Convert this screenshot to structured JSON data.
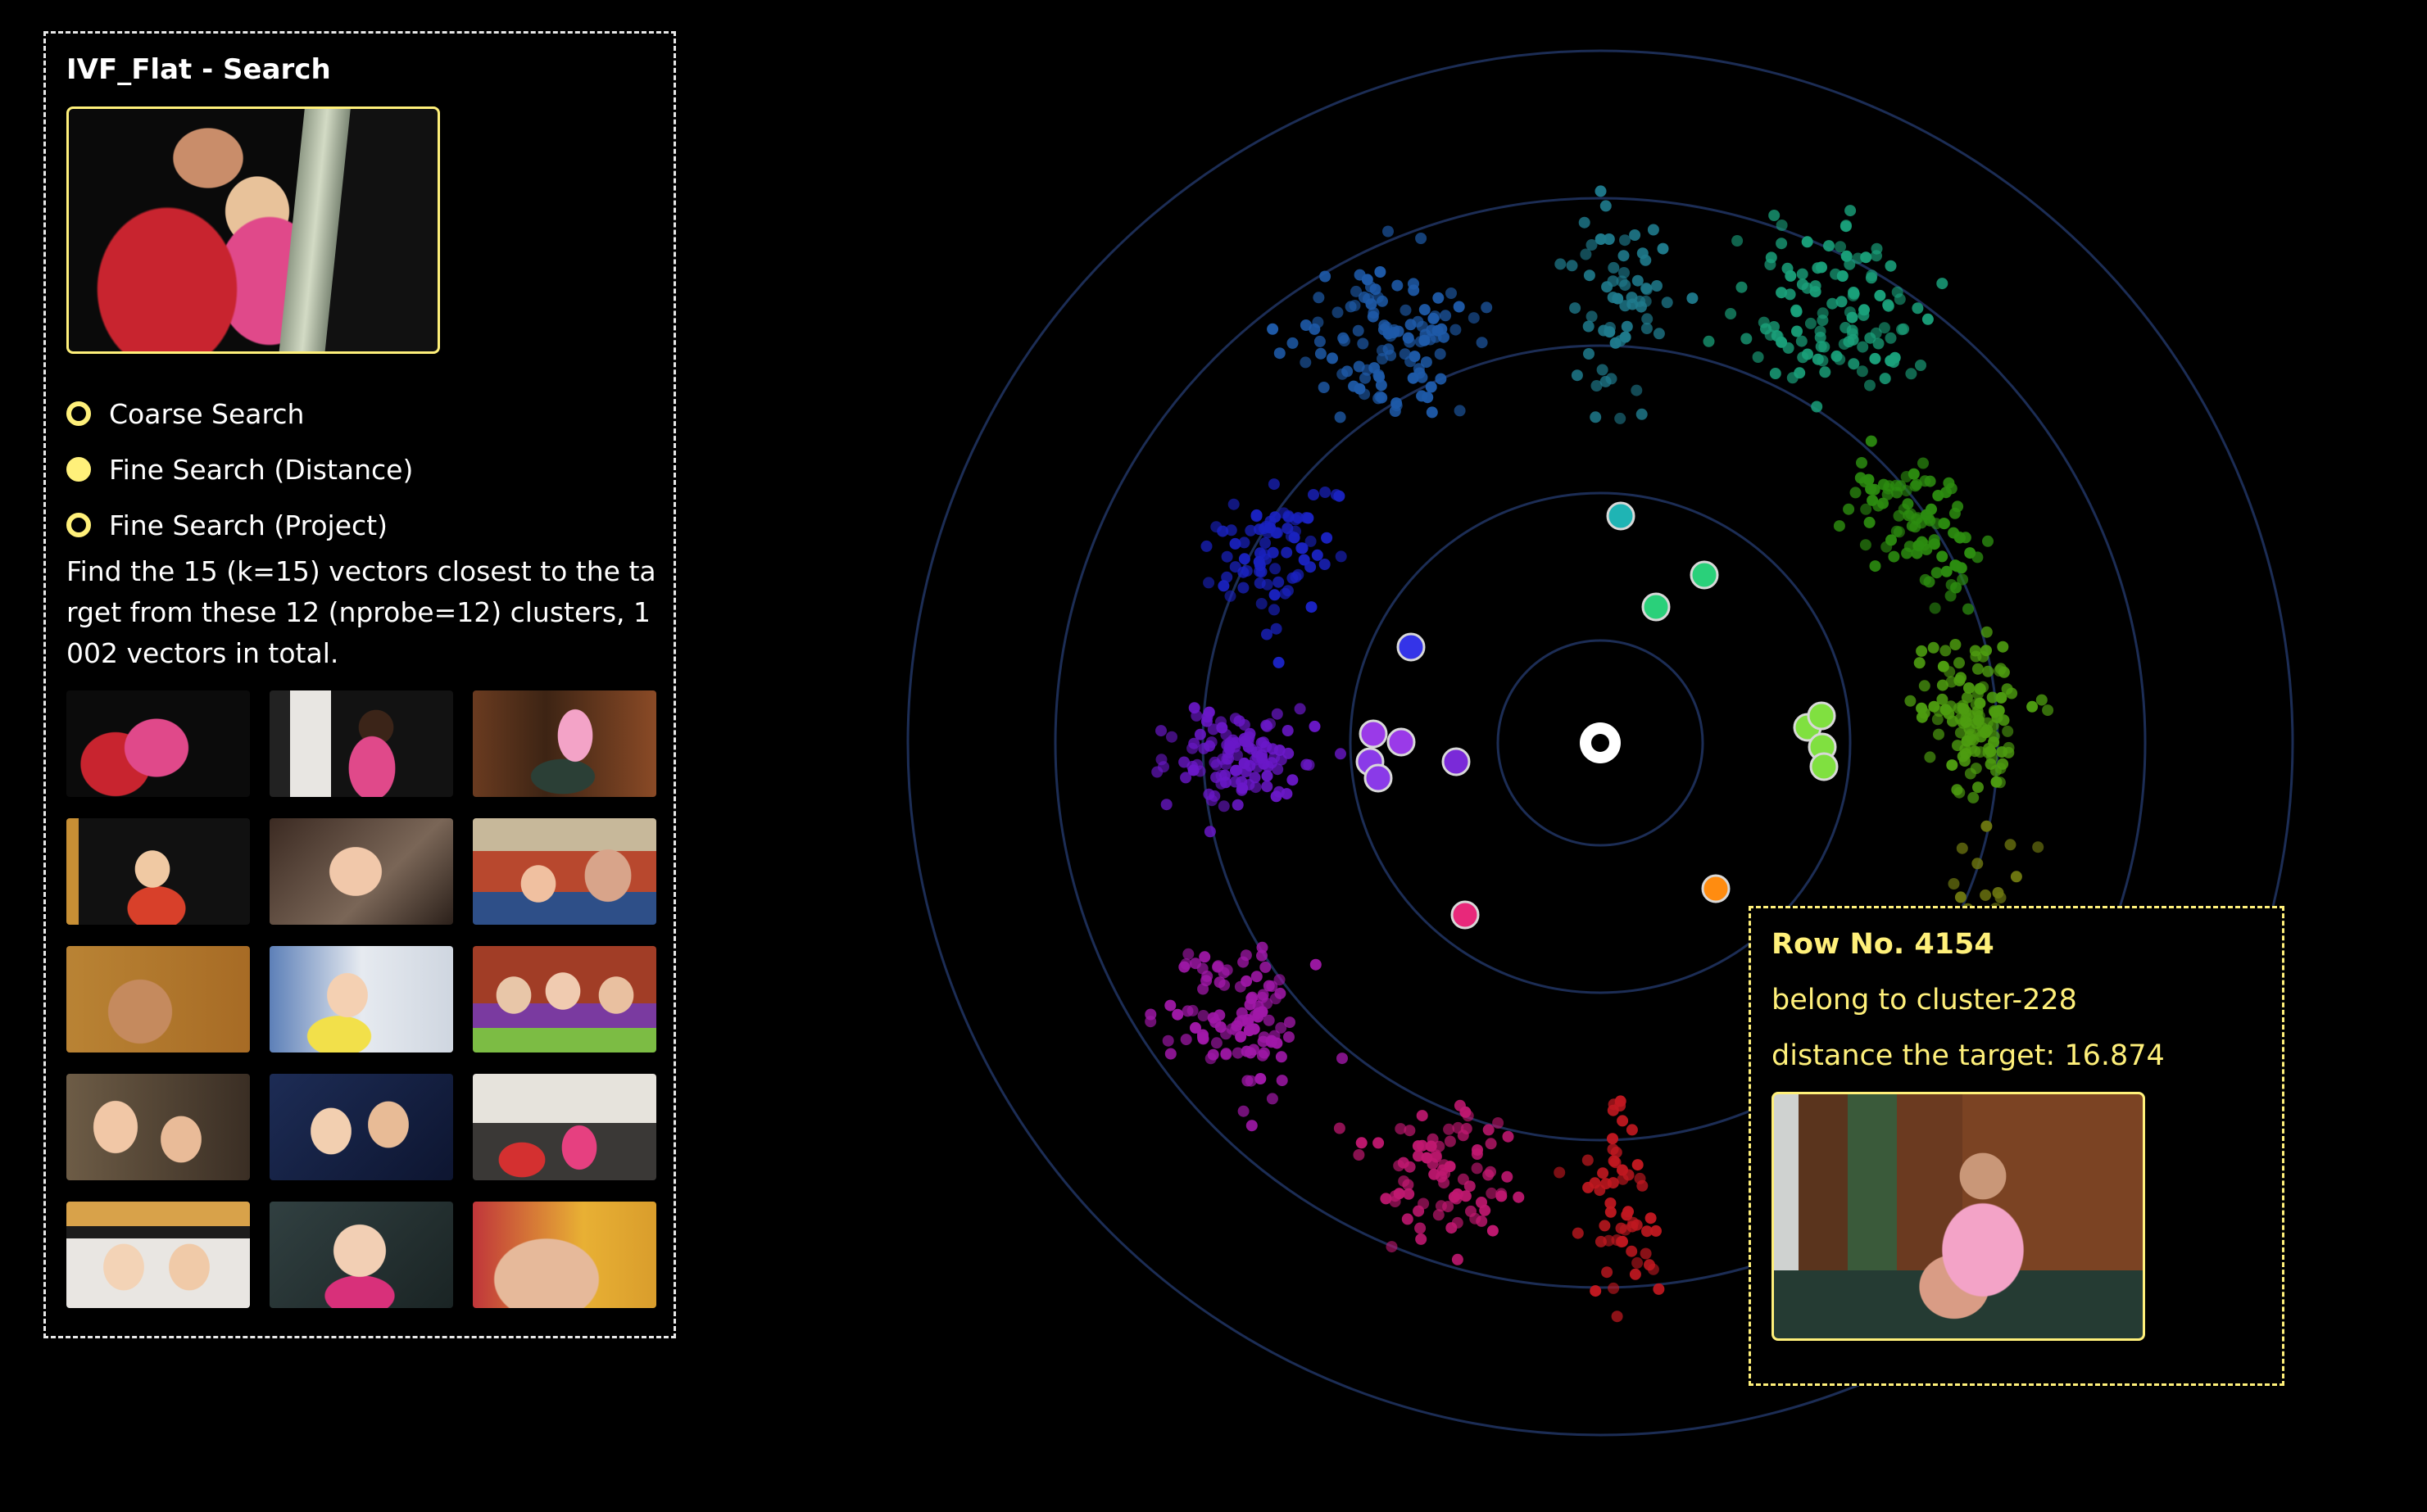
{
  "panel": {
    "title": "IVF_Flat - Search",
    "modes": [
      {
        "label": "Coarse Search",
        "selected": false
      },
      {
        "label": "Fine Search (Distance)",
        "selected": true
      },
      {
        "label": "Fine Search (Project)",
        "selected": false
      }
    ],
    "description": "Find the 15 (k=15) vectors closest to the target from these 12 (nprobe=12) clusters, 1002 vectors in total.",
    "results_count": 15
  },
  "tooltip": {
    "title": "Row No. 4154",
    "cluster": "belong to cluster-228",
    "distance": "distance the target: 16.874"
  },
  "colors": {
    "accent": "#fff07a",
    "ring": "#1c2d55",
    "clusters": [
      "#1f7a8c",
      "#1aa07a",
      "#2c8c10",
      "#4d9c10",
      "#6b7410",
      "#b05a10",
      "#c01820",
      "#c01870",
      "#a018a8",
      "#6a18c8",
      "#1a22c0",
      "#1e5aa8"
    ],
    "highlight": [
      "#1fb4b4",
      "#2ad07a",
      "#2ad07a",
      "#3434e8",
      "#9a3ae8",
      "#9a3ae8",
      "#8a3ae8",
      "#8a3ae8",
      "#7a2ad8",
      "#80e040",
      "#80e040",
      "#80e040",
      "#80e040",
      "#ff8c10",
      "#e8287a"
    ]
  }
}
